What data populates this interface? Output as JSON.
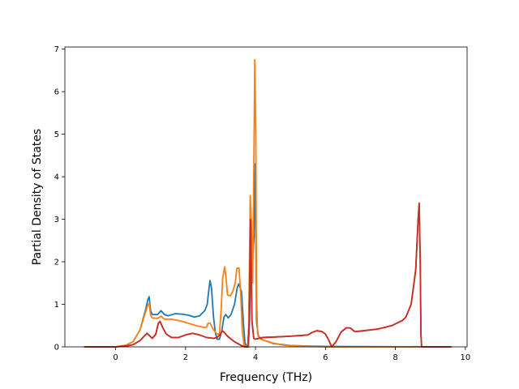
{
  "chart_data": {
    "type": "line",
    "title": "",
    "xlabel": "Frequency (THz)",
    "ylabel": "Partial Density of States",
    "xlim": [
      -1.45,
      10.05
    ],
    "ylim": [
      0,
      7.05
    ],
    "xticks": [
      0,
      2,
      4,
      6,
      8,
      10
    ],
    "yticks": [
      0,
      1,
      2,
      3,
      4,
      5,
      6,
      7
    ],
    "grid": false,
    "legend": "none",
    "series": [
      {
        "color": "#1f77b4",
        "points": [
          [
            -0.9,
            0
          ],
          [
            0,
            0
          ],
          [
            0.3,
            0.04
          ],
          [
            0.5,
            0.12
          ],
          [
            0.7,
            0.4
          ],
          [
            0.85,
            0.85
          ],
          [
            0.92,
            1.1
          ],
          [
            0.96,
            1.18
          ],
          [
            1.0,
            0.85
          ],
          [
            1.05,
            0.76
          ],
          [
            1.2,
            0.76
          ],
          [
            1.3,
            0.85
          ],
          [
            1.4,
            0.76
          ],
          [
            1.5,
            0.73
          ],
          [
            1.7,
            0.78
          ],
          [
            1.9,
            0.77
          ],
          [
            2.1,
            0.74
          ],
          [
            2.25,
            0.7
          ],
          [
            2.4,
            0.73
          ],
          [
            2.55,
            0.85
          ],
          [
            2.62,
            1.0
          ],
          [
            2.66,
            1.3
          ],
          [
            2.7,
            1.56
          ],
          [
            2.74,
            1.4
          ],
          [
            2.8,
            0.7
          ],
          [
            2.85,
            0.35
          ],
          [
            2.9,
            0.18
          ],
          [
            2.97,
            0.18
          ],
          [
            3.03,
            0.35
          ],
          [
            3.1,
            0.7
          ],
          [
            3.15,
            0.76
          ],
          [
            3.22,
            0.68
          ],
          [
            3.3,
            0.76
          ],
          [
            3.4,
            1.0
          ],
          [
            3.48,
            1.4
          ],
          [
            3.52,
            1.48
          ],
          [
            3.6,
            1.3
          ],
          [
            3.66,
            0.5
          ],
          [
            3.7,
            0.1
          ],
          [
            3.75,
            0
          ],
          [
            3.8,
            0
          ],
          [
            3.83,
            0.6
          ],
          [
            3.86,
            1.8
          ],
          [
            3.9,
            2.5
          ],
          [
            3.93,
            2.2
          ],
          [
            3.96,
            2.6
          ],
          [
            3.98,
            4.3
          ],
          [
            4.0,
            3.8
          ],
          [
            4.03,
            0.6
          ],
          [
            4.08,
            0.25
          ],
          [
            4.2,
            0.17
          ],
          [
            4.5,
            0.08
          ],
          [
            5.0,
            0.03
          ],
          [
            6.0,
            0.01
          ],
          [
            9.6,
            0
          ]
        ]
      },
      {
        "color": "#ff7f0e",
        "points": [
          [
            -0.9,
            0
          ],
          [
            0,
            0
          ],
          [
            0.3,
            0.04
          ],
          [
            0.5,
            0.12
          ],
          [
            0.7,
            0.4
          ],
          [
            0.85,
            0.8
          ],
          [
            0.92,
            0.98
          ],
          [
            0.96,
            1.02
          ],
          [
            1.0,
            0.75
          ],
          [
            1.05,
            0.68
          ],
          [
            1.2,
            0.67
          ],
          [
            1.3,
            0.72
          ],
          [
            1.4,
            0.65
          ],
          [
            1.6,
            0.65
          ],
          [
            1.9,
            0.6
          ],
          [
            2.1,
            0.55
          ],
          [
            2.3,
            0.5
          ],
          [
            2.5,
            0.46
          ],
          [
            2.6,
            0.46
          ],
          [
            2.64,
            0.55
          ],
          [
            2.7,
            0.56
          ],
          [
            2.8,
            0.4
          ],
          [
            2.9,
            0.3
          ],
          [
            2.97,
            0.3
          ],
          [
            3.02,
            0.9
          ],
          [
            3.06,
            1.6
          ],
          [
            3.1,
            1.8
          ],
          [
            3.12,
            1.88
          ],
          [
            3.16,
            1.6
          ],
          [
            3.2,
            1.22
          ],
          [
            3.28,
            1.2
          ],
          [
            3.35,
            1.3
          ],
          [
            3.42,
            1.5
          ],
          [
            3.47,
            1.85
          ],
          [
            3.53,
            1.85
          ],
          [
            3.58,
            1.2
          ],
          [
            3.62,
            0.4
          ],
          [
            3.67,
            0.05
          ],
          [
            3.75,
            0
          ],
          [
            3.8,
            0
          ],
          [
            3.82,
            1.5
          ],
          [
            3.85,
            3.56
          ],
          [
            3.88,
            3.0
          ],
          [
            3.92,
            1.5
          ],
          [
            3.95,
            4.0
          ],
          [
            3.98,
            6.75
          ],
          [
            4.01,
            5.0
          ],
          [
            4.03,
            1.2
          ],
          [
            4.06,
            0.3
          ],
          [
            4.15,
            0.18
          ],
          [
            4.3,
            0.14
          ],
          [
            4.5,
            0.09
          ],
          [
            4.8,
            0.04
          ],
          [
            5.2,
            0.02
          ],
          [
            6.0,
            0
          ],
          [
            9.6,
            0
          ]
        ]
      },
      {
        "color": "#2ca02c",
        "points": [
          [
            -0.9,
            0
          ],
          [
            0,
            0
          ],
          [
            0.3,
            0.02
          ],
          [
            0.5,
            0.05
          ],
          [
            0.7,
            0.15
          ],
          [
            0.85,
            0.28
          ],
          [
            0.9,
            0.32
          ],
          [
            0.95,
            0.28
          ],
          [
            1.05,
            0.2
          ],
          [
            1.15,
            0.3
          ],
          [
            1.22,
            0.55
          ],
          [
            1.27,
            0.6
          ],
          [
            1.35,
            0.45
          ],
          [
            1.45,
            0.3
          ],
          [
            1.6,
            0.22
          ],
          [
            1.8,
            0.22
          ],
          [
            2.0,
            0.28
          ],
          [
            2.2,
            0.32
          ],
          [
            2.4,
            0.28
          ],
          [
            2.6,
            0.22
          ],
          [
            2.8,
            0.2
          ],
          [
            2.9,
            0.22
          ],
          [
            3.0,
            0.3
          ],
          [
            3.05,
            0.38
          ],
          [
            3.12,
            0.33
          ],
          [
            3.2,
            0.25
          ],
          [
            3.4,
            0.12
          ],
          [
            3.6,
            0.03
          ],
          [
            3.7,
            0
          ],
          [
            3.78,
            0
          ],
          [
            3.82,
            0.6
          ],
          [
            3.86,
            3.0
          ],
          [
            3.9,
            0.6
          ],
          [
            3.95,
            0.2
          ],
          [
            4.0,
            0.18
          ],
          [
            4.2,
            0.22
          ],
          [
            4.5,
            0.23
          ],
          [
            5.0,
            0.25
          ],
          [
            5.5,
            0.28
          ],
          [
            5.62,
            0.34
          ],
          [
            5.75,
            0.38
          ],
          [
            5.9,
            0.36
          ],
          [
            6.0,
            0.3
          ],
          [
            6.1,
            0.15
          ],
          [
            6.18,
            0
          ],
          [
            6.3,
            0.12
          ],
          [
            6.45,
            0.35
          ],
          [
            6.6,
            0.45
          ],
          [
            6.72,
            0.44
          ],
          [
            6.8,
            0.38
          ],
          [
            6.85,
            0.36
          ],
          [
            7.0,
            0.37
          ],
          [
            7.5,
            0.42
          ],
          [
            7.9,
            0.5
          ],
          [
            8.2,
            0.62
          ],
          [
            8.3,
            0.7
          ],
          [
            8.45,
            1.0
          ],
          [
            8.58,
            1.8
          ],
          [
            8.65,
            3.0
          ],
          [
            8.68,
            3.38
          ],
          [
            8.71,
            2.0
          ],
          [
            8.73,
            0.3
          ],
          [
            8.75,
            0
          ],
          [
            9.6,
            0
          ]
        ]
      },
      {
        "color": "#d62728",
        "points": [
          [
            -0.9,
            0
          ],
          [
            0,
            0
          ],
          [
            0.3,
            0.02
          ],
          [
            0.5,
            0.05
          ],
          [
            0.7,
            0.15
          ],
          [
            0.85,
            0.28
          ],
          [
            0.9,
            0.32
          ],
          [
            0.95,
            0.28
          ],
          [
            1.05,
            0.2
          ],
          [
            1.15,
            0.3
          ],
          [
            1.22,
            0.55
          ],
          [
            1.27,
            0.6
          ],
          [
            1.35,
            0.45
          ],
          [
            1.45,
            0.3
          ],
          [
            1.6,
            0.22
          ],
          [
            1.8,
            0.22
          ],
          [
            2.0,
            0.28
          ],
          [
            2.2,
            0.32
          ],
          [
            2.4,
            0.28
          ],
          [
            2.6,
            0.22
          ],
          [
            2.8,
            0.2
          ],
          [
            2.9,
            0.22
          ],
          [
            3.0,
            0.3
          ],
          [
            3.05,
            0.38
          ],
          [
            3.12,
            0.33
          ],
          [
            3.2,
            0.25
          ],
          [
            3.4,
            0.12
          ],
          [
            3.6,
            0.03
          ],
          [
            3.7,
            0
          ],
          [
            3.78,
            0
          ],
          [
            3.82,
            0.6
          ],
          [
            3.86,
            3.0
          ],
          [
            3.9,
            0.6
          ],
          [
            3.95,
            0.2
          ],
          [
            4.0,
            0.18
          ],
          [
            4.2,
            0.22
          ],
          [
            4.5,
            0.23
          ],
          [
            5.0,
            0.25
          ],
          [
            5.5,
            0.28
          ],
          [
            5.62,
            0.34
          ],
          [
            5.75,
            0.38
          ],
          [
            5.9,
            0.36
          ],
          [
            6.0,
            0.3
          ],
          [
            6.1,
            0.15
          ],
          [
            6.18,
            0
          ],
          [
            6.3,
            0.12
          ],
          [
            6.45,
            0.35
          ],
          [
            6.6,
            0.45
          ],
          [
            6.72,
            0.44
          ],
          [
            6.8,
            0.38
          ],
          [
            6.85,
            0.36
          ],
          [
            7.0,
            0.37
          ],
          [
            7.5,
            0.42
          ],
          [
            7.9,
            0.5
          ],
          [
            8.2,
            0.62
          ],
          [
            8.3,
            0.7
          ],
          [
            8.45,
            1.0
          ],
          [
            8.58,
            1.8
          ],
          [
            8.65,
            3.0
          ],
          [
            8.68,
            3.38
          ],
          [
            8.71,
            2.0
          ],
          [
            8.73,
            0.3
          ],
          [
            8.75,
            0
          ],
          [
            9.6,
            0
          ]
        ]
      }
    ]
  }
}
